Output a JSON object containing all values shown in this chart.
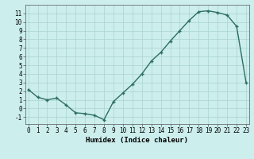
{
  "x": [
    0,
    1,
    2,
    3,
    4,
    5,
    6,
    7,
    8,
    9,
    10,
    11,
    12,
    13,
    14,
    15,
    16,
    17,
    18,
    19,
    20,
    21,
    22,
    23
  ],
  "y": [
    2.2,
    1.3,
    1.0,
    1.2,
    0.4,
    -0.5,
    -0.6,
    -0.8,
    -1.3,
    0.8,
    1.8,
    2.8,
    4.0,
    5.5,
    6.5,
    7.8,
    9.0,
    10.2,
    11.2,
    11.3,
    11.1,
    10.8,
    9.5,
    3.0
  ],
  "xlabel": "Humidex (Indice chaleur)",
  "bg_color": "#cceeed",
  "line_color": "#2e6e62",
  "grid_color": "#aad4d0",
  "ylim": [
    -1.8,
    12.0
  ],
  "xlim": [
    -0.3,
    23.3
  ],
  "yticks": [
    -1,
    0,
    1,
    2,
    3,
    4,
    5,
    6,
    7,
    8,
    9,
    10,
    11
  ],
  "xticks": [
    0,
    1,
    2,
    3,
    4,
    5,
    6,
    7,
    8,
    9,
    10,
    11,
    12,
    13,
    14,
    15,
    16,
    17,
    18,
    19,
    20,
    21,
    22,
    23
  ],
  "tick_fontsize": 5.5,
  "xlabel_fontsize": 6.5,
  "linewidth": 1.0,
  "markersize": 3.5
}
